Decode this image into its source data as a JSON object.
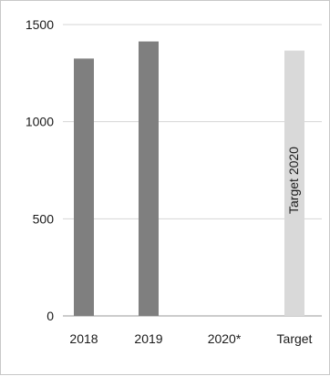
{
  "chart_data": {
    "type": "bar",
    "title": "",
    "xlabel": "",
    "ylabel": "",
    "categories": [
      "2018",
      "2019",
      "2020*",
      "Target"
    ],
    "values": [
      1325,
      1413,
      null,
      1366
    ],
    "ylim": [
      0,
      1500
    ],
    "yticks": [
      0,
      500,
      1000,
      1500
    ],
    "grid": true,
    "bar_colors": [
      "#7f7f7f",
      "#7f7f7f",
      "#7f7f7f",
      "#d9d9d9"
    ],
    "annotations": [
      {
        "category": "Target",
        "text": "Target 2020",
        "orientation": "vertical"
      }
    ]
  }
}
